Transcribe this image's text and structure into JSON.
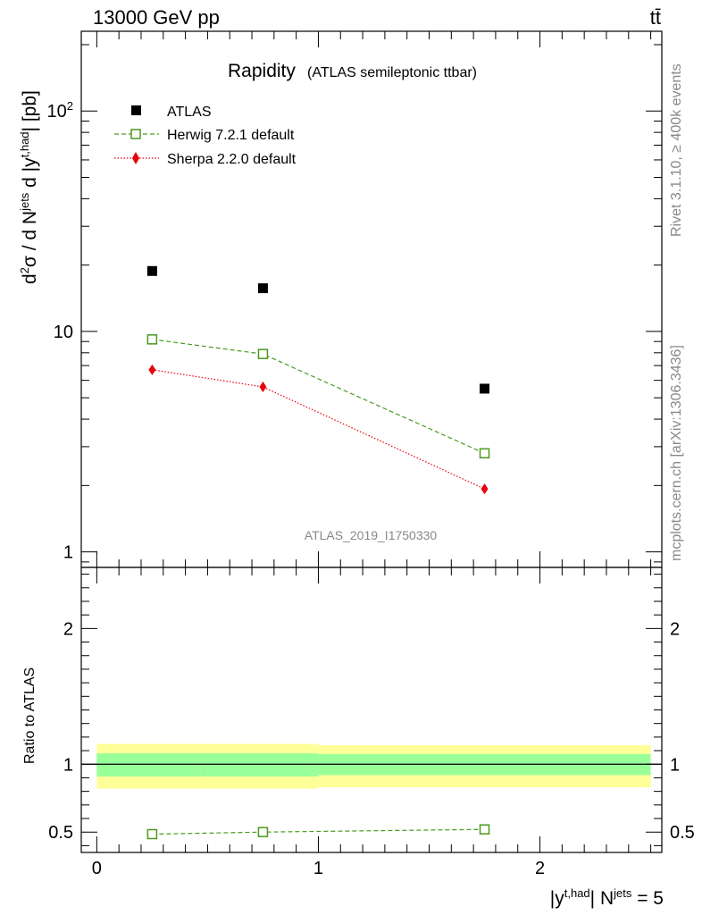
{
  "header": {
    "energy_label": "13000 GeV pp",
    "process_label": "tt̄"
  },
  "side_labels": {
    "rivet": "Rivet 3.1.10, ≥ 400k events",
    "mcplots": "mcplots.cern.ch [arXiv:1306.3436]"
  },
  "watermark": "ATLAS_2019_I1750330",
  "colors": {
    "atlas": "#000000",
    "herwig": "#4a9a1e",
    "sherpa": "#e8000b",
    "band_inner": "#99ff99",
    "band_outer": "#ffff99"
  },
  "chart_data": [
    {
      "panel": "main",
      "type": "scatter",
      "title": "Rapidity",
      "subtitle": "(ATLAS semileptonic ttbar)",
      "ylabel": "d²σ / d N^jets d |y^t,had| [pb]",
      "yscale": "log",
      "ylim": [
        0.85,
        230
      ],
      "xlim": [
        -0.07,
        2.55
      ],
      "y_ticks": [
        {
          "value": 1,
          "label": "1"
        },
        {
          "value": 10,
          "label": "10"
        },
        {
          "value": 100,
          "label": "10²"
        }
      ],
      "legend": {
        "placement": "top-left"
      },
      "series": [
        {
          "name": "ATLAS",
          "marker": "filled-square",
          "line": "none",
          "x": [
            0.25,
            0.75,
            1.75
          ],
          "y": [
            18.8,
            15.7,
            5.5
          ]
        },
        {
          "name": "Herwig 7.2.1 default",
          "marker": "open-square",
          "line": "dashed",
          "x": [
            0.25,
            0.75,
            1.75
          ],
          "y": [
            9.2,
            7.9,
            2.8
          ]
        },
        {
          "name": "Sherpa 2.2.0 default",
          "marker": "filled-diamond",
          "line": "dotted",
          "x": [
            0.25,
            0.75,
            1.75
          ],
          "y": [
            6.7,
            5.6,
            1.93
          ]
        }
      ]
    },
    {
      "panel": "ratio",
      "type": "line",
      "ylabel": "Ratio to ATLAS",
      "xlabel": "|y^t,had| N^jets = 5",
      "ylim": [
        0.35,
        2.45
      ],
      "xlim": [
        -0.07,
        2.55
      ],
      "x_ticks": [
        {
          "value": 0,
          "label": "0"
        },
        {
          "value": 1,
          "label": "1"
        },
        {
          "value": 2,
          "label": "2"
        }
      ],
      "y_ticks": [
        {
          "value": 0.5,
          "label": "0.5"
        },
        {
          "value": 1,
          "label": "1"
        },
        {
          "value": 2,
          "label": "2"
        }
      ],
      "bands": [
        {
          "x_low": 0,
          "x_high": 0.5,
          "inner": [
            0.91,
            1.08
          ],
          "outer": [
            0.82,
            1.15
          ]
        },
        {
          "x_low": 0.5,
          "x_high": 1,
          "inner": [
            0.91,
            1.08
          ],
          "outer": [
            0.82,
            1.15
          ]
        },
        {
          "x_low": 1,
          "x_high": 2.5,
          "inner": [
            0.92,
            1.075
          ],
          "outer": [
            0.83,
            1.14
          ]
        }
      ],
      "series": [
        {
          "name": "Herwig 7.2.1 default",
          "marker": "open-square",
          "line": "dashed",
          "x": [
            0.25,
            0.75,
            1.75
          ],
          "y": [
            0.485,
            0.5,
            0.52
          ]
        }
      ]
    }
  ]
}
